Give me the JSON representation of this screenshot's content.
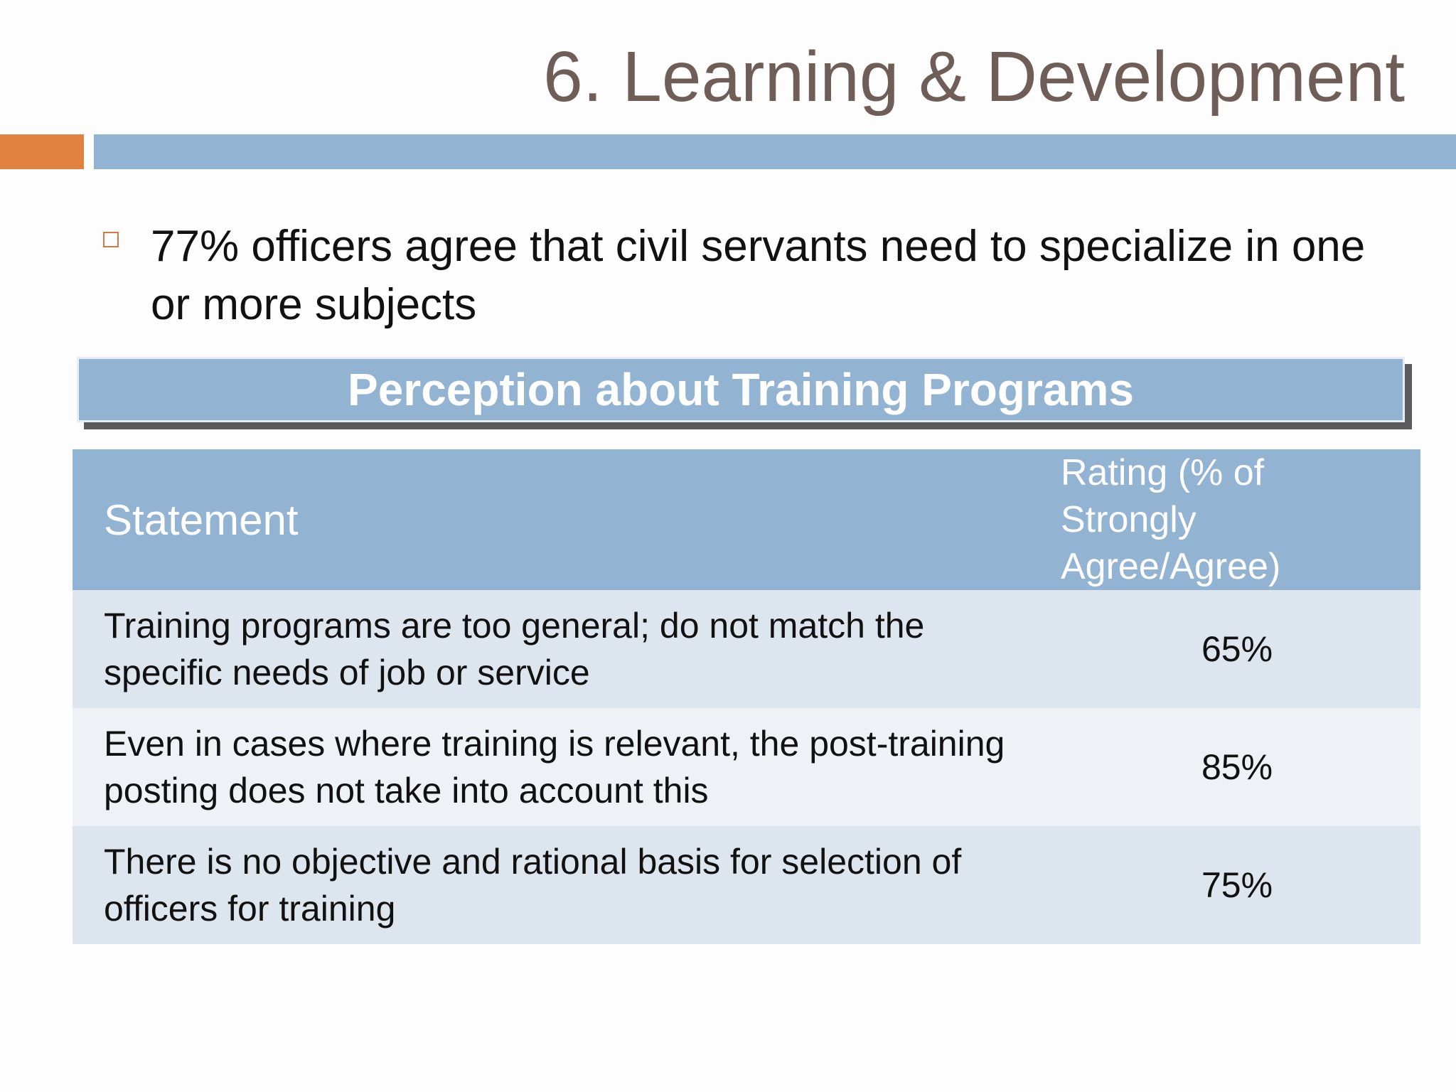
{
  "slide": {
    "title": "6. Learning & Development",
    "bullet": "77% officers agree that civil servants need to specialize in one or more subjects"
  },
  "table": {
    "title": "Perception about Training Programs",
    "headers": {
      "statement": "Statement",
      "rating": "Rating (% of Strongly Agree/Agree)"
    },
    "rows": [
      {
        "statement": "Training programs are too general; do not match the specific needs of job or service",
        "rating": "65%"
      },
      {
        "statement": "Even in cases where training is relevant, the post-training posting does not take into account this",
        "rating": "85%"
      },
      {
        "statement": "There is no objective and rational basis for selection of officers for training",
        "rating": "75%"
      }
    ]
  },
  "colors": {
    "title_text": "#6f5e58",
    "accent_orange": "#e0813f",
    "header_blue": "#93b3d2",
    "row_light": "#dde5ef",
    "row_lighter": "#eef2f7"
  }
}
